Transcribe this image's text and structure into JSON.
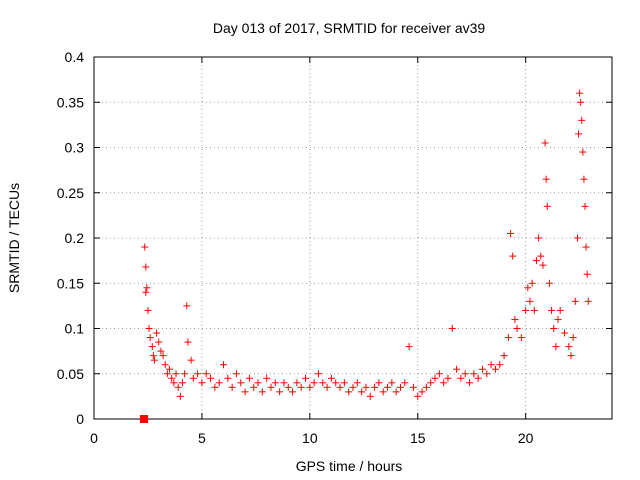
{
  "chart_data": {
    "type": "scatter",
    "title": "Day 013 of 2017, SRMTID for receiver av39",
    "xlabel": "GPS time / hours",
    "ylabel": "SRMTID / TECUs",
    "xlim": [
      0,
      24
    ],
    "ylim": [
      0,
      0.4
    ],
    "xticks": [
      0,
      5,
      10,
      15,
      20
    ],
    "xtick_labels": [
      "0",
      "5",
      "10",
      "15",
      "20"
    ],
    "yticks": [
      0,
      0.05,
      0.1,
      0.15,
      0.2,
      0.25,
      0.3,
      0.35,
      0.4
    ],
    "ytick_labels": [
      "0",
      "0.05",
      "0.1",
      "0.15",
      "0.2",
      "0.25",
      "0.3",
      "0.35",
      "0.4"
    ],
    "grid": true,
    "marker": "plus",
    "series_color": "#ff0000",
    "series": [
      {
        "name": "SRMTID",
        "marker": "plus",
        "points": [
          [
            2.35,
            0.19
          ],
          [
            2.4,
            0.168
          ],
          [
            2.45,
            0.145
          ],
          [
            2.4,
            0.14
          ],
          [
            2.5,
            0.12
          ],
          [
            2.55,
            0.1
          ],
          [
            2.6,
            0.09
          ],
          [
            2.7,
            0.08
          ],
          [
            2.75,
            0.07
          ],
          [
            2.8,
            0.065
          ],
          [
            2.9,
            0.095
          ],
          [
            3.0,
            0.085
          ],
          [
            3.1,
            0.075
          ],
          [
            3.2,
            0.07
          ],
          [
            3.3,
            0.06
          ],
          [
            3.4,
            0.05
          ],
          [
            3.5,
            0.055
          ],
          [
            3.6,
            0.045
          ],
          [
            3.7,
            0.04
          ],
          [
            3.8,
            0.05
          ],
          [
            3.9,
            0.035
          ],
          [
            4.0,
            0.025
          ],
          [
            4.1,
            0.04
          ],
          [
            4.2,
            0.05
          ],
          [
            4.3,
            0.125
          ],
          [
            4.35,
            0.085
          ],
          [
            4.5,
            0.065
          ],
          [
            4.6,
            0.045
          ],
          [
            4.8,
            0.05
          ],
          [
            5.0,
            0.04
          ],
          [
            5.2,
            0.05
          ],
          [
            5.4,
            0.045
          ],
          [
            5.6,
            0.035
          ],
          [
            5.8,
            0.04
          ],
          [
            6.0,
            0.06
          ],
          [
            6.2,
            0.045
          ],
          [
            6.4,
            0.035
          ],
          [
            6.6,
            0.05
          ],
          [
            6.8,
            0.04
          ],
          [
            7.0,
            0.03
          ],
          [
            7.2,
            0.045
          ],
          [
            7.4,
            0.035
          ],
          [
            7.6,
            0.04
          ],
          [
            7.8,
            0.03
          ],
          [
            8.0,
            0.045
          ],
          [
            8.2,
            0.035
          ],
          [
            8.4,
            0.04
          ],
          [
            8.6,
            0.03
          ],
          [
            8.8,
            0.04
          ],
          [
            9.0,
            0.035
          ],
          [
            9.2,
            0.03
          ],
          [
            9.4,
            0.04
          ],
          [
            9.6,
            0.035
          ],
          [
            9.8,
            0.045
          ],
          [
            10.0,
            0.035
          ],
          [
            10.2,
            0.04
          ],
          [
            10.4,
            0.05
          ],
          [
            10.6,
            0.04
          ],
          [
            10.8,
            0.035
          ],
          [
            11.0,
            0.045
          ],
          [
            11.2,
            0.04
          ],
          [
            11.4,
            0.035
          ],
          [
            11.6,
            0.04
          ],
          [
            11.8,
            0.03
          ],
          [
            12.0,
            0.035
          ],
          [
            12.2,
            0.04
          ],
          [
            12.4,
            0.03
          ],
          [
            12.6,
            0.035
          ],
          [
            12.8,
            0.025
          ],
          [
            13.0,
            0.035
          ],
          [
            13.2,
            0.04
          ],
          [
            13.4,
            0.03
          ],
          [
            13.6,
            0.035
          ],
          [
            13.8,
            0.04
          ],
          [
            14.0,
            0.03
          ],
          [
            14.2,
            0.035
          ],
          [
            14.4,
            0.04
          ],
          [
            14.6,
            0.08
          ],
          [
            14.8,
            0.035
          ],
          [
            15.0,
            0.025
          ],
          [
            15.2,
            0.03
          ],
          [
            15.4,
            0.035
          ],
          [
            15.6,
            0.04
          ],
          [
            15.8,
            0.045
          ],
          [
            16.0,
            0.05
          ],
          [
            16.2,
            0.04
          ],
          [
            16.4,
            0.045
          ],
          [
            16.6,
            0.1
          ],
          [
            16.8,
            0.055
          ],
          [
            17.0,
            0.045
          ],
          [
            17.2,
            0.05
          ],
          [
            17.4,
            0.04
          ],
          [
            17.6,
            0.05
          ],
          [
            17.8,
            0.045
          ],
          [
            18.0,
            0.055
          ],
          [
            18.2,
            0.05
          ],
          [
            18.4,
            0.06
          ],
          [
            18.6,
            0.055
          ],
          [
            18.8,
            0.06
          ],
          [
            19.0,
            0.07
          ],
          [
            19.2,
            0.09
          ],
          [
            19.3,
            0.205
          ],
          [
            19.4,
            0.18
          ],
          [
            19.5,
            0.11
          ],
          [
            19.6,
            0.1
          ],
          [
            19.8,
            0.09
          ],
          [
            20.0,
            0.12
          ],
          [
            20.1,
            0.145
          ],
          [
            20.2,
            0.13
          ],
          [
            20.3,
            0.15
          ],
          [
            20.4,
            0.12
          ],
          [
            20.5,
            0.175
          ],
          [
            20.6,
            0.2
          ],
          [
            20.7,
            0.18
          ],
          [
            20.8,
            0.17
          ],
          [
            20.9,
            0.305
          ],
          [
            20.95,
            0.265
          ],
          [
            21.0,
            0.235
          ],
          [
            21.1,
            0.15
          ],
          [
            21.2,
            0.12
          ],
          [
            21.3,
            0.1
          ],
          [
            21.4,
            0.08
          ],
          [
            21.5,
            0.11
          ],
          [
            21.6,
            0.12
          ],
          [
            21.8,
            0.095
          ],
          [
            22.0,
            0.08
          ],
          [
            22.1,
            0.07
          ],
          [
            22.2,
            0.09
          ],
          [
            22.3,
            0.13
          ],
          [
            22.4,
            0.2
          ],
          [
            22.45,
            0.315
          ],
          [
            22.5,
            0.36
          ],
          [
            22.55,
            0.35
          ],
          [
            22.6,
            0.33
          ],
          [
            22.65,
            0.295
          ],
          [
            22.7,
            0.265
          ],
          [
            22.75,
            0.235
          ],
          [
            22.8,
            0.19
          ],
          [
            22.85,
            0.16
          ],
          [
            22.9,
            0.13
          ]
        ]
      }
    ]
  }
}
